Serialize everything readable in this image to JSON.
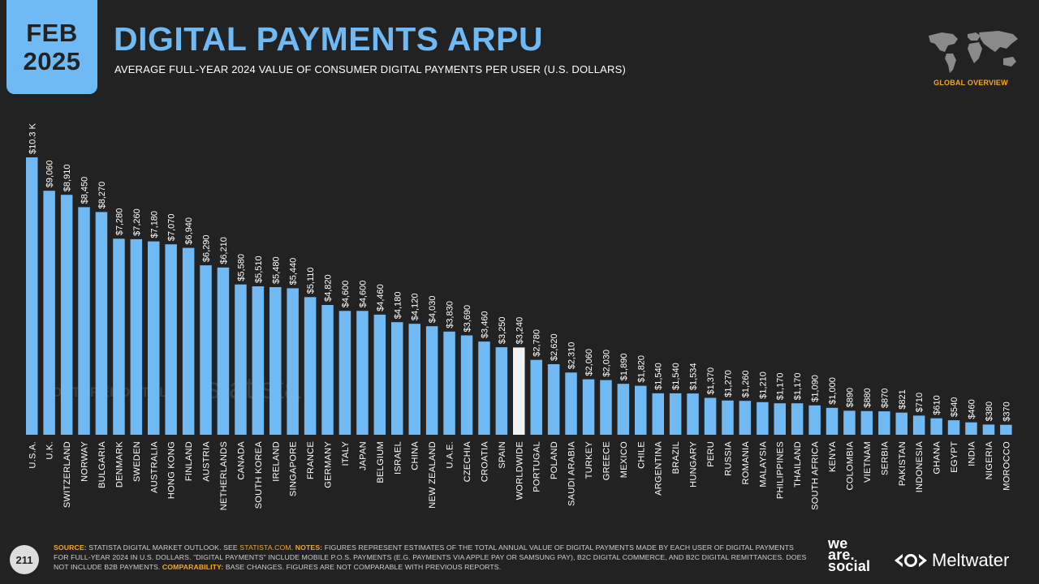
{
  "header": {
    "badge_month": "FEB",
    "badge_year": "2025",
    "title": "DIGITAL PAYMENTS ARPU",
    "subtitle": "AVERAGE FULL-YEAR 2024 VALUE OF CONSUMER DIGITAL PAYMENTS PER USER (U.S. DOLLARS)",
    "section_label": "GLOBAL OVERVIEW"
  },
  "colors": {
    "bar": "#6fb9f5",
    "highlight_bar": "#f2f2f2",
    "accent": "#f5a623",
    "background": "#222222"
  },
  "watermarks": [
    "DATAREPORTAL",
    "statista"
  ],
  "chart_data": {
    "type": "bar",
    "title": "",
    "xlabel": "",
    "ylabel": "",
    "ylim": [
      0,
      10300
    ],
    "grid": false,
    "highlight": "WORLDWIDE",
    "categories": [
      "U.S.A.",
      "U.K.",
      "SWITZERLAND",
      "NORWAY",
      "BULGARIA",
      "DENMARK",
      "SWEDEN",
      "AUSTRALIA",
      "HONG KONG",
      "FINLAND",
      "AUSTRIA",
      "NETHERLANDS",
      "CANADA",
      "SOUTH KOREA",
      "IRELAND",
      "SINGAPORE",
      "FRANCE",
      "GERMANY",
      "ITALY",
      "JAPAN",
      "BELGIUM",
      "ISRAEL",
      "CHINA",
      "NEW ZEALAND",
      "U.A.E.",
      "CZECHIA",
      "CROATIA",
      "SPAIN",
      "WORLDWIDE",
      "PORTUGAL",
      "POLAND",
      "SAUDI ARABIA",
      "TURKEY",
      "GREECE",
      "MEXICO",
      "CHILE",
      "ARGENTINA",
      "BRAZIL",
      "HUNGARY",
      "PERU",
      "RUSSIA",
      "ROMANIA",
      "MALAYSIA",
      "PHILIPPINES",
      "THAILAND",
      "SOUTH AFRICA",
      "KENYA",
      "COLOMBIA",
      "VIETNAM",
      "SERBIA",
      "PAKISTAN",
      "INDONESIA",
      "GHANA",
      "EGYPT",
      "INDIA",
      "NIGERIA",
      "MOROCCO"
    ],
    "values": [
      10300,
      9060,
      8910,
      8450,
      8270,
      7280,
      7260,
      7180,
      7070,
      6940,
      6290,
      6210,
      5580,
      5510,
      5480,
      5440,
      5110,
      4820,
      4600,
      4600,
      4460,
      4180,
      4120,
      4030,
      3830,
      3690,
      3460,
      3250,
      3240,
      2780,
      2620,
      2310,
      2060,
      2030,
      1890,
      1820,
      1540,
      1540,
      1534,
      1370,
      1270,
      1260,
      1210,
      1170,
      1170,
      1090,
      1000,
      890,
      880,
      870,
      821,
      710,
      610,
      540,
      460,
      380,
      370
    ],
    "labels": [
      "$10.3 K",
      "$9,060",
      "$8,910",
      "$8,450",
      "$8,270",
      "$7,280",
      "$7,260",
      "$7,180",
      "$7,070",
      "$6,940",
      "$6,290",
      "$6,210",
      "$5,580",
      "$5,510",
      "$5,480",
      "$5,440",
      "$5,110",
      "$4,820",
      "$4,600",
      "$4,600",
      "$4,460",
      "$4,180",
      "$4,120",
      "$4,030",
      "$3,830",
      "$3,690",
      "$3,460",
      "$3,250",
      "$3,240",
      "$2,780",
      "$2,620",
      "$2,310",
      "$2,060",
      "$2,030",
      "$1,890",
      "$1,820",
      "$1,540",
      "$1,540",
      "$1,534",
      "$1,370",
      "$1,270",
      "$1,260",
      "$1,210",
      "$1,170",
      "$1,170",
      "$1,090",
      "$1,000",
      "$890",
      "$880",
      "$870",
      "$821",
      "$710",
      "$610",
      "$540",
      "$460",
      "$380",
      "$370"
    ]
  },
  "footer": {
    "page_number": "211",
    "source_label": "SOURCE:",
    "source_text": " STATISTA DIGITAL MARKET OUTLOOK. SEE ",
    "source_link": "STATISTA.COM",
    "source_end": ". ",
    "notes_label": "NOTES:",
    "notes_text": " FIGURES REPRESENT ESTIMATES OF THE TOTAL ANNUAL VALUE OF DIGITAL PAYMENTS MADE BY EACH USER OF DIGITAL PAYMENTS FOR FULL-YEAR 2024 IN U.S. DOLLARS. \"DIGITAL PAYMENTS\" INCLUDE MOBILE P.O.S. PAYMENTS (E.G. PAYMENTS VIA APPLE PAY OR SAMSUNG PAY), B2C DIGITAL COMMERCE, AND B2C DIGITAL REMITTANCES. DOES NOT INCLUDE B2B PAYMENTS. ",
    "comparability_label": "COMPARABILITY:",
    "comparability_text": " BASE CHANGES. FIGURES ARE NOT COMPARABLE WITH PREVIOUS REPORTS.",
    "brand_line1": "we",
    "brand_line2": "are.",
    "brand_line3": "social",
    "brand_partner": "Meltwater"
  }
}
